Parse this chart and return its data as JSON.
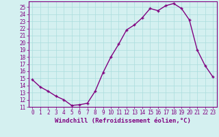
{
  "x": [
    0,
    1,
    2,
    3,
    4,
    5,
    6,
    7,
    8,
    9,
    10,
    11,
    12,
    13,
    14,
    15,
    16,
    17,
    18,
    19,
    20,
    21,
    22,
    23
  ],
  "y": [
    14.8,
    13.8,
    13.2,
    12.5,
    12.0,
    11.2,
    11.3,
    11.5,
    13.2,
    15.8,
    18.0,
    19.8,
    21.8,
    22.5,
    23.5,
    24.8,
    24.5,
    25.2,
    25.5,
    24.8,
    23.2,
    19.0,
    16.8,
    15.2
  ],
  "line_color": "#800080",
  "marker": "+",
  "marker_size": 3,
  "bg_color": "#d4f0f0",
  "grid_color": "#aadddd",
  "xlabel": "Windchill (Refroidissement éolien,°C)",
  "xlabel_color": "#800080",
  "tick_color": "#800080",
  "xlim": [
    -0.5,
    23.5
  ],
  "ylim": [
    11,
    25.8
  ],
  "yticks": [
    11,
    12,
    13,
    14,
    15,
    16,
    17,
    18,
    19,
    20,
    21,
    22,
    23,
    24,
    25
  ],
  "xticks": [
    0,
    1,
    2,
    3,
    4,
    5,
    6,
    7,
    8,
    9,
    10,
    11,
    12,
    13,
    14,
    15,
    16,
    17,
    18,
    19,
    20,
    21,
    22,
    23
  ],
  "line_width": 1.0,
  "tick_fontsize": 5.5,
  "xlabel_fontsize": 6.5
}
